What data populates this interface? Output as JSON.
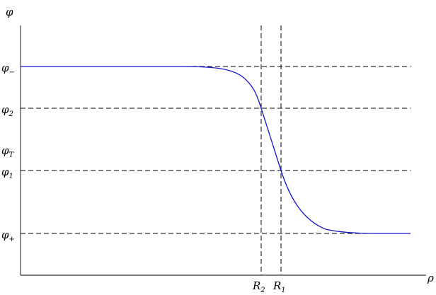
{
  "axes": {
    "y_label": "φ",
    "x_label": "ρ"
  },
  "levels": [
    {
      "key": "phi_minus",
      "base": "φ",
      "sub": "−"
    },
    {
      "key": "phi_2",
      "base": "φ",
      "sub": "2"
    },
    {
      "key": "phi_T",
      "base": "φ",
      "sub": "T"
    },
    {
      "key": "phi_1",
      "base": "φ",
      "sub": "1"
    },
    {
      "key": "phi_plus",
      "base": "φ",
      "sub": "+"
    }
  ],
  "radii": [
    {
      "key": "R2",
      "base": "R",
      "sub": "2"
    },
    {
      "key": "R1",
      "base": "R",
      "sub": "1"
    }
  ],
  "colors": {
    "curve": "#1414cc",
    "lines": "#000000"
  }
}
